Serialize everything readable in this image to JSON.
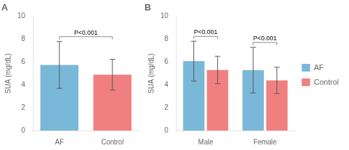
{
  "chart_data": [
    {
      "type": "bar",
      "title": "A",
      "categories": [
        "AF",
        "Control"
      ],
      "values": [
        5.75,
        4.89
      ],
      "errors": [
        2.05,
        1.35
      ],
      "colors": [
        "#7ab8d9",
        "#f08080"
      ],
      "ylabel": "SUA (mg/dL)",
      "ylim": [
        0,
        10
      ],
      "yticks": [
        0,
        2,
        4,
        6,
        8,
        10
      ],
      "annotations": [
        "P<0.001"
      ],
      "grid": false
    },
    {
      "type": "bar",
      "title": "B",
      "categories": [
        "Male",
        "Female"
      ],
      "series": [
        {
          "name": "AF",
          "color": "#7ab8d9",
          "values": [
            6.08,
            5.29
          ],
          "errors": [
            1.75,
            2.0
          ]
        },
        {
          "name": "Control",
          "color": "#f08080",
          "values": [
            5.3,
            4.39
          ],
          "errors": [
            1.2,
            1.15
          ]
        }
      ],
      "ylabel": "SUA (mg/dL)",
      "ylim": [
        0,
        10
      ],
      "yticks": [
        0,
        2,
        4,
        6,
        8,
        10
      ],
      "annotations": [
        "P<0.001",
        "P<0.001"
      ],
      "legend": "right",
      "grid": false
    }
  ]
}
